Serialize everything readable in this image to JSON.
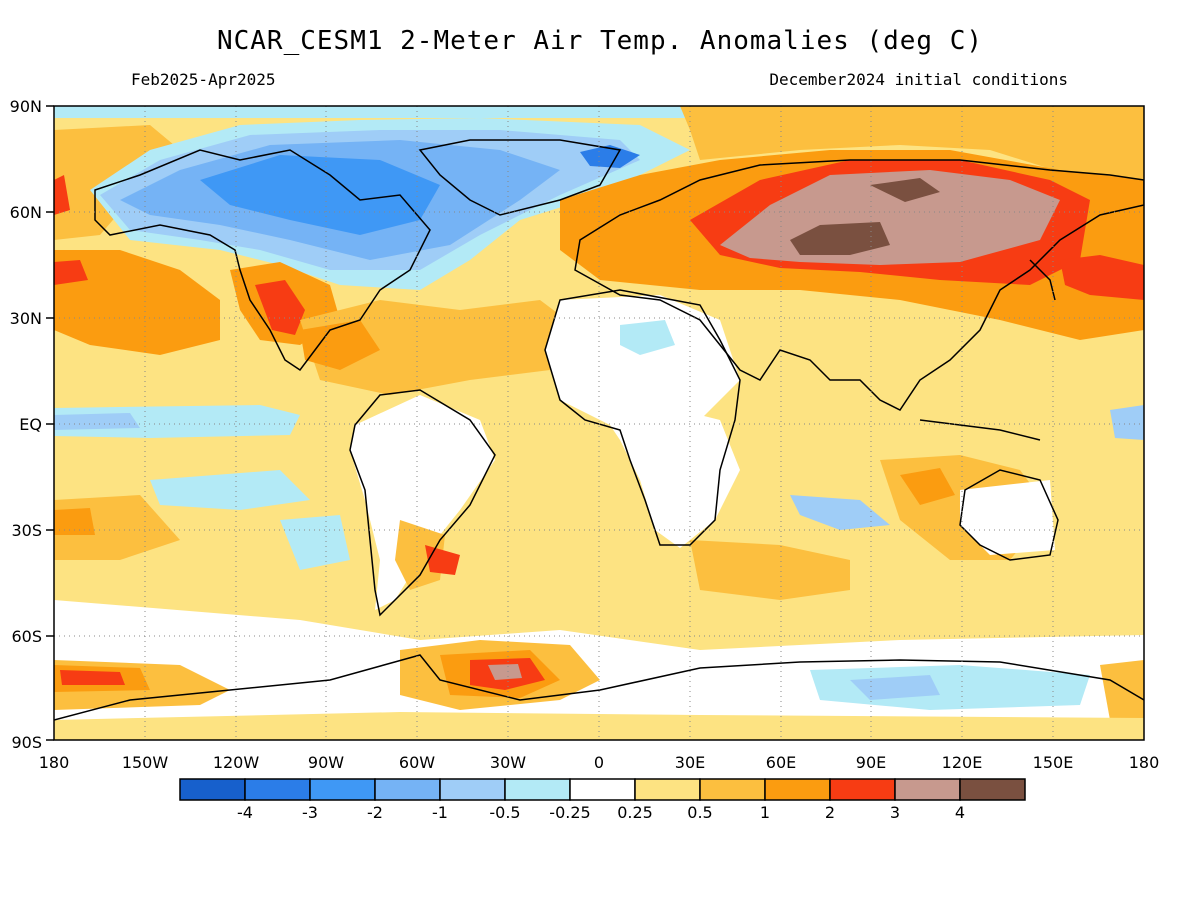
{
  "title": "NCAR_CESM1 2-Meter Air Temp. Anomalies (deg C)",
  "subtitle_left": "Feb2025-Apr2025",
  "subtitle_right": "December2024 initial conditions",
  "lat_labels": [
    "90N",
    "60N",
    "30N",
    "EQ",
    "30S",
    "60S",
    "90S"
  ],
  "lon_labels": [
    "180",
    "150W",
    "120W",
    "90W",
    "60W",
    "30W",
    "0",
    "30E",
    "60E",
    "90E",
    "120E",
    "150E",
    "180"
  ],
  "colorbar": {
    "colors": [
      "#1760cc",
      "#2b7de8",
      "#3f98f5",
      "#75b3f5",
      "#9fcdf7",
      "#b3eaf6",
      "#ffffff",
      "#fde382",
      "#fcbf3f",
      "#fb9c10",
      "#f73c13",
      "#c7998e",
      "#7a5040"
    ],
    "labels": [
      "-4",
      "-3",
      "-2",
      "-1",
      "-0.5",
      "-0.25",
      "0.25",
      "0.5",
      "1",
      "2",
      "3",
      "4"
    ]
  }
}
